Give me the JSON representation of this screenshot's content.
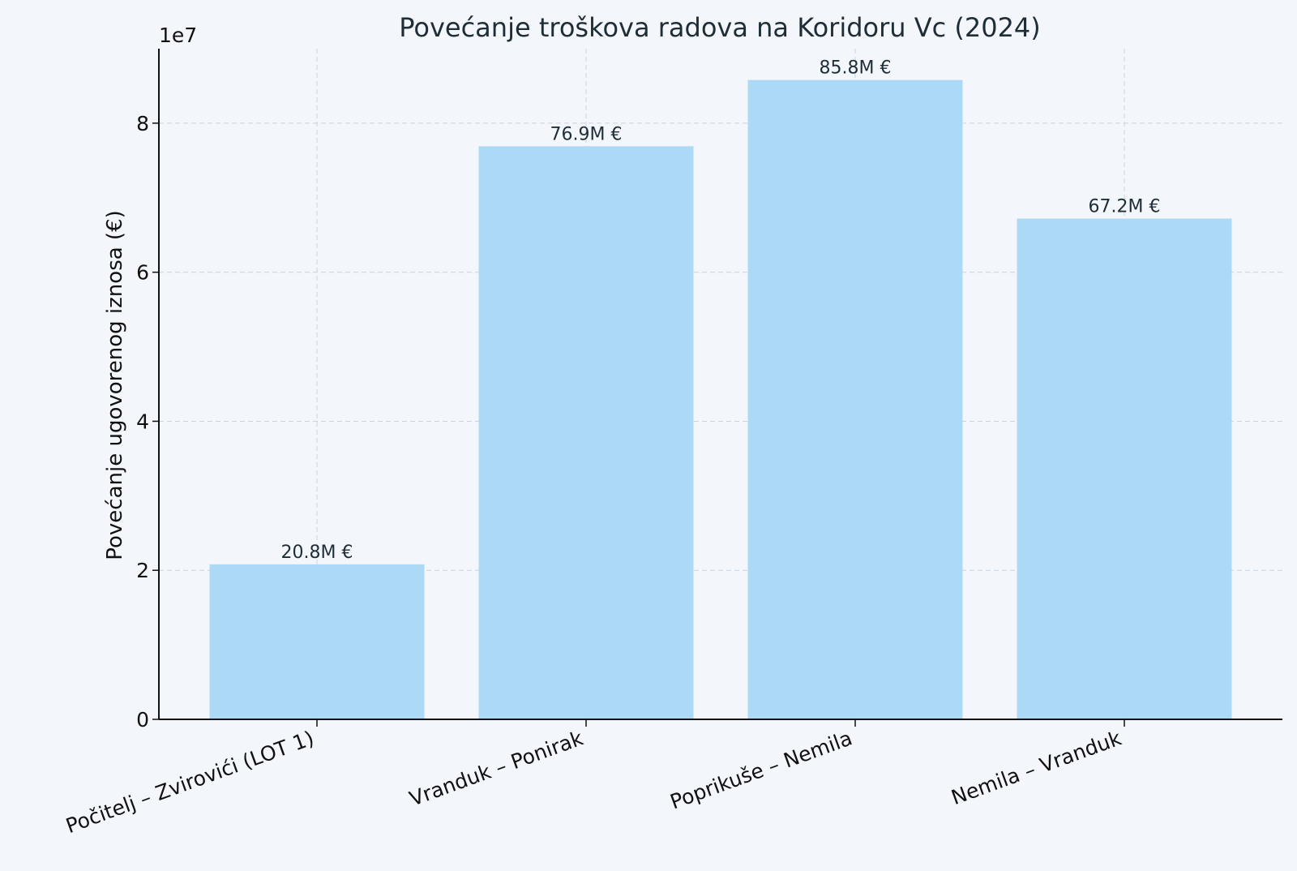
{
  "chart_data": {
    "type": "bar",
    "title": "Povećanje troškova radova na Koridoru Vc (2024)",
    "xlabel": "",
    "ylabel": "Povećanje ugovorenog iznosa (€)",
    "axis_exponent_label": "1e7",
    "categories": [
      "Počitelj – Zvirovići (LOT 1)",
      "Vranduk – Ponirak",
      "Poprikuše – Nemila",
      "Nemila – Vranduk"
    ],
    "values": [
      20800000,
      76900000,
      85800000,
      67200000
    ],
    "data_labels": [
      "20.8M €",
      "76.9M €",
      "85.8M €",
      "67.2M €"
    ],
    "ylim": [
      0,
      90000000
    ],
    "yticks": [
      0,
      20000000,
      40000000,
      60000000,
      80000000
    ],
    "ytick_labels": [
      "0",
      "2",
      "4",
      "6",
      "8"
    ],
    "grid": true,
    "bar_color": "#acd9f5"
  }
}
